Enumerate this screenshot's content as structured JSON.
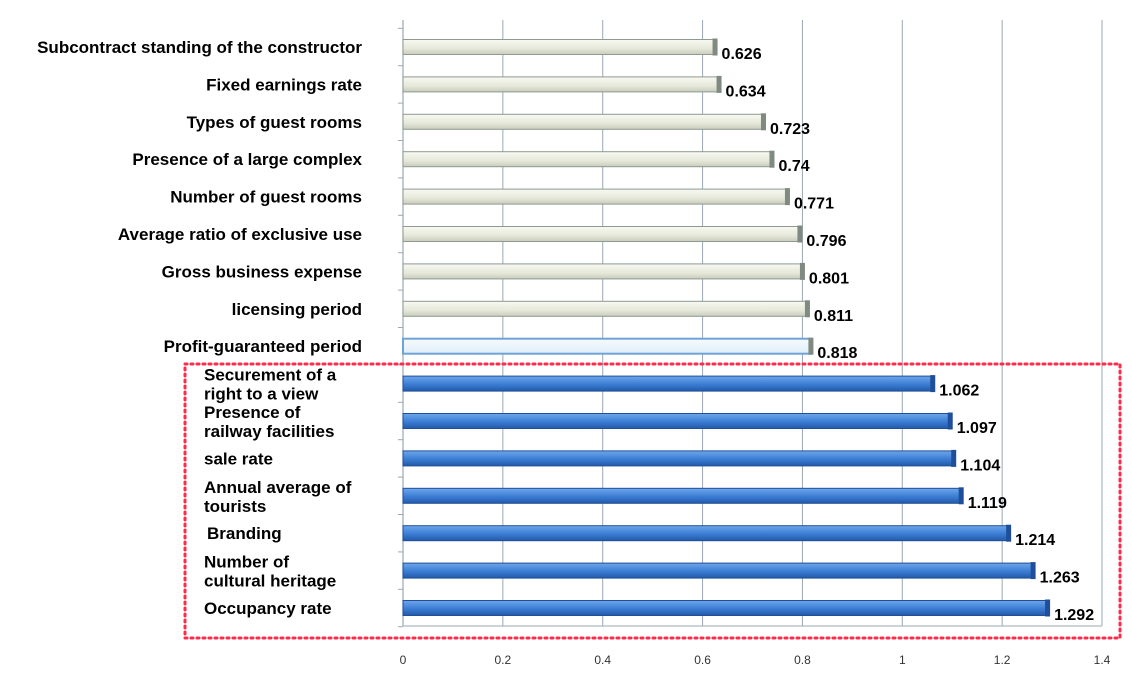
{
  "chart_data": {
    "type": "bar",
    "orientation": "horizontal",
    "categories": [
      [
        "Subcontract standing of the constructor"
      ],
      [
        "Fixed earnings rate"
      ],
      [
        "Types of guest rooms"
      ],
      [
        "Presence of a large complex"
      ],
      [
        "Number of guest rooms"
      ],
      [
        "Average ratio of exclusive use"
      ],
      [
        "Gross business expense"
      ],
      [
        "licensing period"
      ],
      [
        "Profit-guaranteed period"
      ],
      [
        "Securement of a",
        "right to a view"
      ],
      [
        "Presence of",
        "railway facilities"
      ],
      [
        "sale rate"
      ],
      [
        "Annual average of",
        "tourists"
      ],
      [
        "Branding"
      ],
      [
        "Number of",
        "cultural heritage"
      ],
      [
        "Occupancy rate"
      ]
    ],
    "values": [
      0.626,
      0.634,
      0.723,
      0.74,
      0.771,
      0.796,
      0.801,
      0.811,
      0.818,
      1.062,
      1.097,
      1.104,
      1.119,
      1.214,
      1.263,
      1.292
    ],
    "value_labels": [
      "0.626",
      "0.634",
      "0.723",
      "0.74",
      "0.771",
      "0.796",
      "0.801",
      "0.811",
      "0.818",
      "1.062",
      "1.097",
      "1.104",
      "1.119",
      "1.214",
      "1.263",
      "1.292"
    ],
    "xlim": [
      0,
      1.4
    ],
    "x_ticks": [
      "0",
      "0.2",
      "0.4",
      "0.6",
      "0.8",
      "1",
      "1.2",
      "1.4"
    ],
    "grid": true,
    "highlighted_group": "bars with value above 1 enclosed in red dotted box",
    "colors": {
      "low_bar": "#e9ebdf",
      "low_bar_edge": "#8e9a8e",
      "high_bar": "#3c7fd6",
      "high_bar_edge": "#1f4f9a",
      "profit_bar_edge": "#6fa3d8",
      "highlight_box": "#ff2a4a",
      "grid": "#9aa8b4"
    }
  }
}
